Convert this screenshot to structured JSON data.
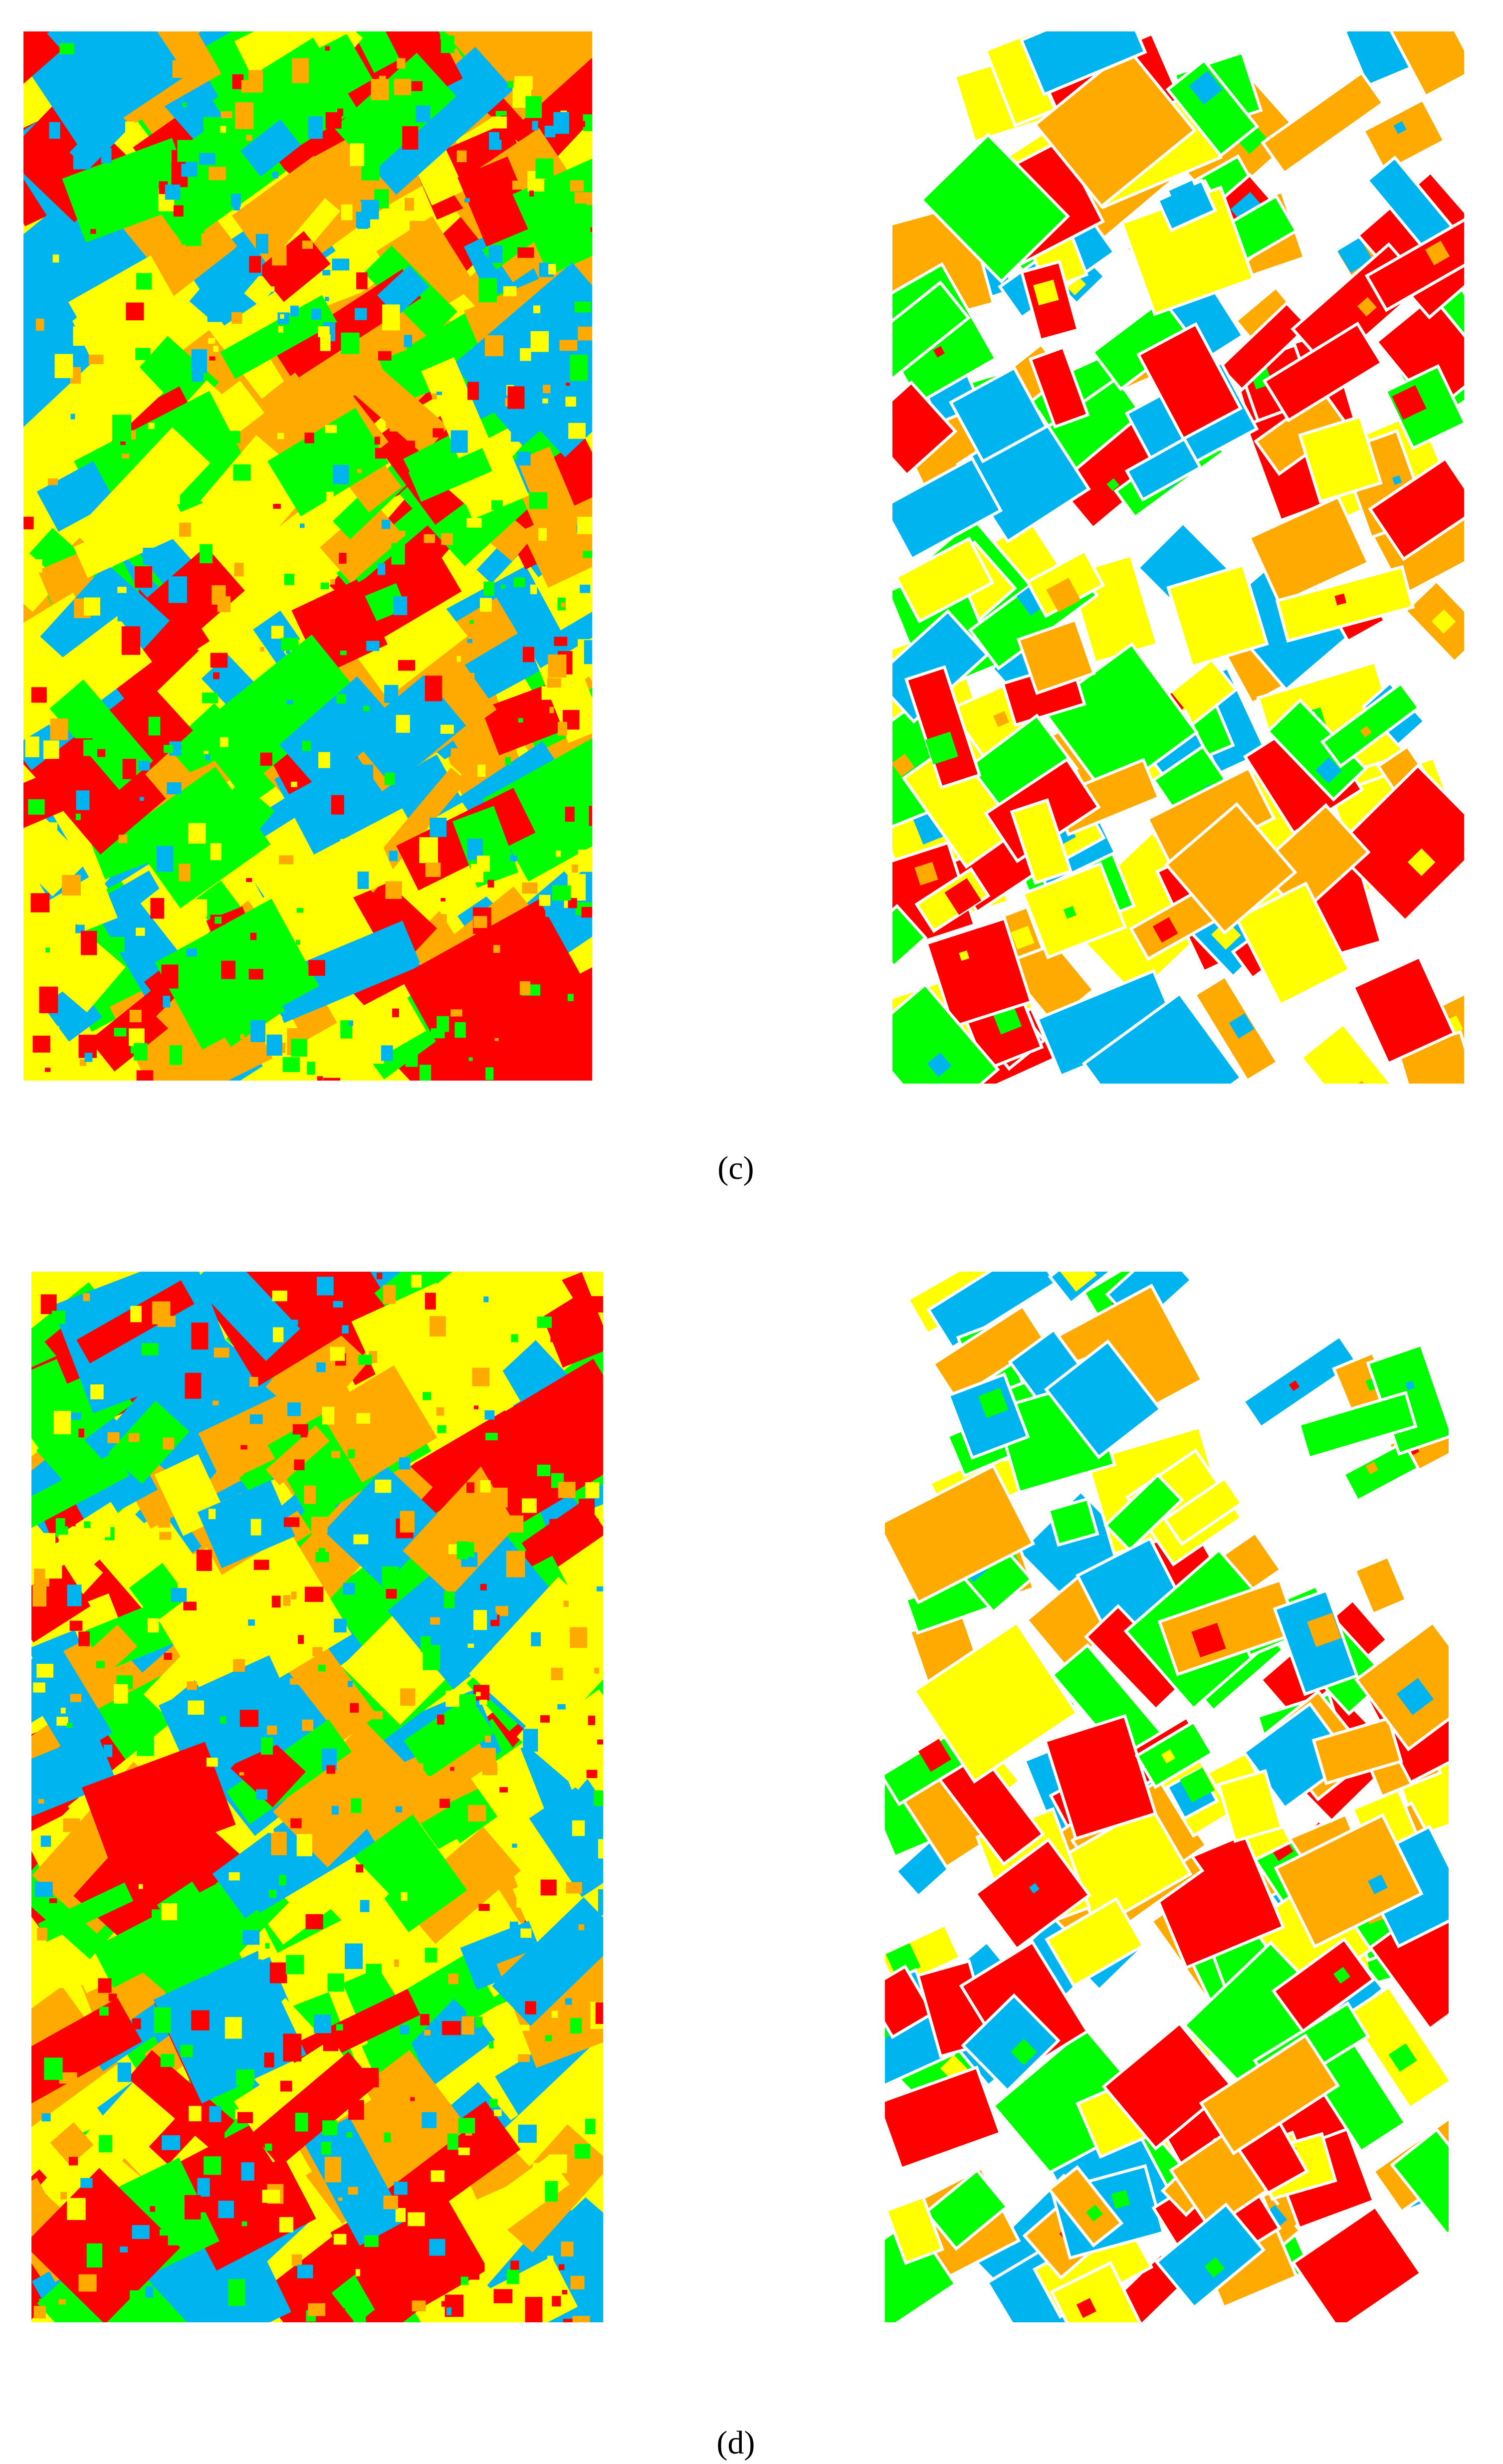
{
  "figure": {
    "panels": [
      {
        "label": "(c)"
      },
      {
        "label": "(d)"
      }
    ]
  }
}
